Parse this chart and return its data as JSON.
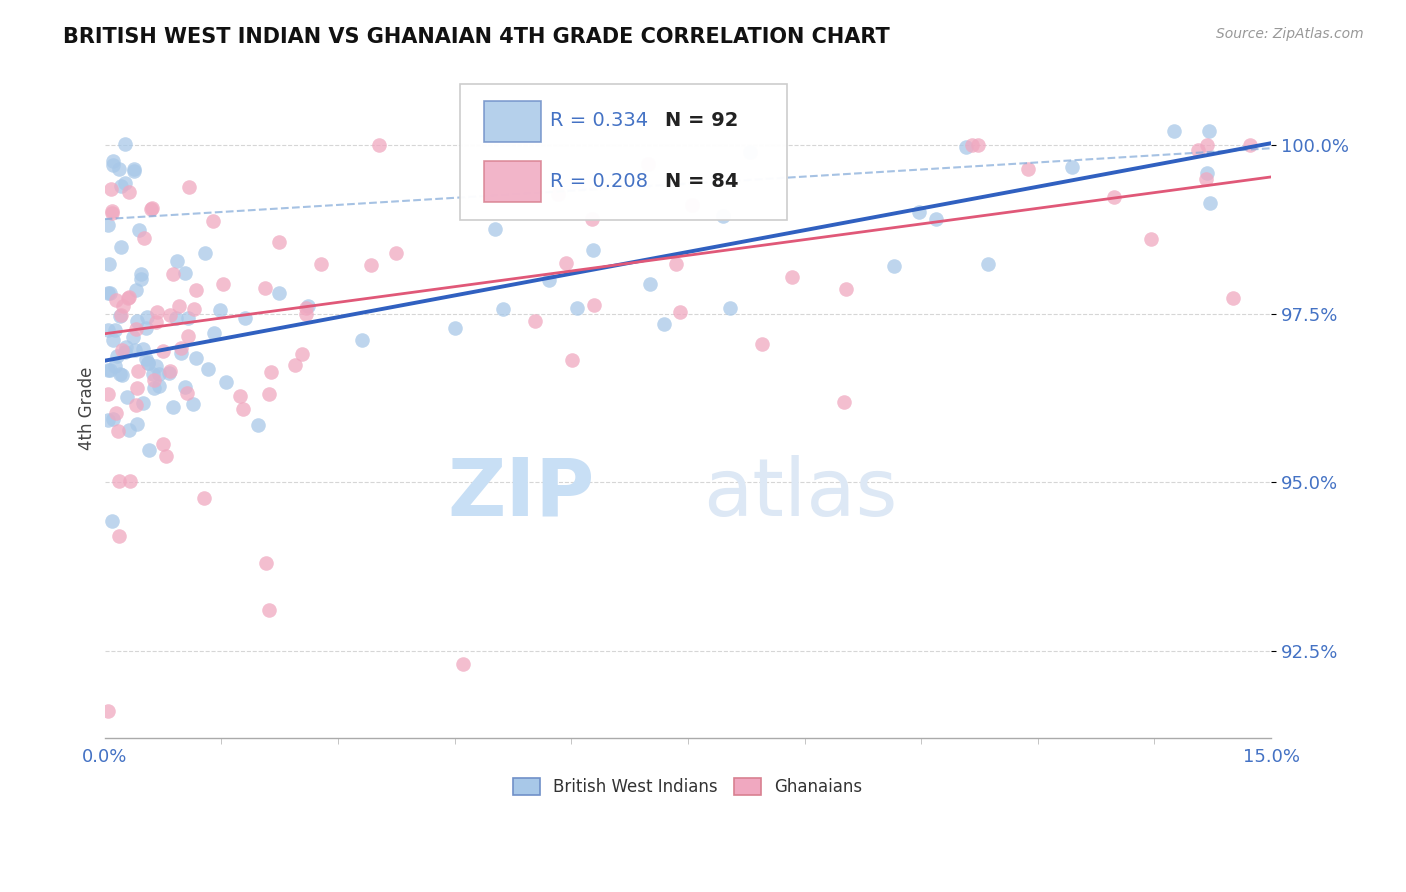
{
  "title": "BRITISH WEST INDIAN VS GHANAIAN 4TH GRADE CORRELATION CHART",
  "source_text": "Source: ZipAtlas.com",
  "ylabel": "4th Grade",
  "xlim": [
    0.0,
    15.0
  ],
  "ylim": [
    91.2,
    101.0
  ],
  "yticks": [
    92.5,
    95.0,
    97.5,
    100.0
  ],
  "blue_label": "British West Indians",
  "pink_label": "Ghanaians",
  "blue_r": "R = 0.334",
  "blue_n": "N = 92",
  "pink_r": "R = 0.208",
  "pink_n": "N = 84",
  "blue_color": "#a8c8e8",
  "pink_color": "#f0a8c0",
  "blue_line_color": "#3060c0",
  "pink_line_color": "#e05878",
  "blue_dash_color": "#80a8d8",
  "watermark_zip": "ZIP",
  "watermark_atlas": "atlas",
  "watermark_color": "#ddeeff",
  "title_color": "#111111",
  "axis_label_color": "#444444",
  "tick_label_color": "#4472c4",
  "grid_color": "#cccccc",
  "background_color": "#ffffff",
  "blue_intercept": 96.8,
  "blue_slope": 0.215,
  "pink_intercept": 97.2,
  "pink_slope": 0.155,
  "dash_intercept": 98.9,
  "dash_slope": 0.07
}
